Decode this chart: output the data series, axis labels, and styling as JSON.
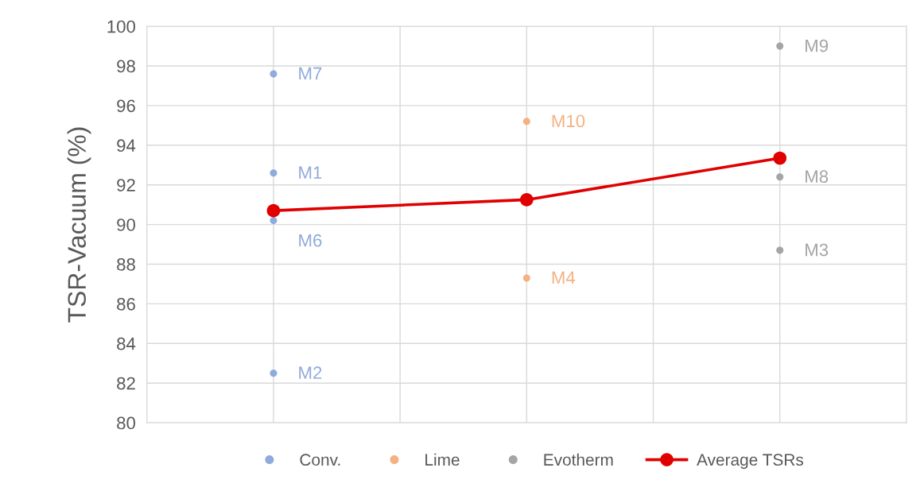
{
  "chart_data": {
    "type": "scatter",
    "ylabel": "TSR-Vacuum (%)",
    "categories": [
      null,
      null,
      null
    ],
    "ylim": [
      80,
      100
    ],
    "yticks": [
      80,
      82,
      84,
      86,
      88,
      90,
      92,
      94,
      96,
      98,
      100
    ],
    "grid": true,
    "legend": "bottom",
    "tick_labels": "y",
    "marker": "circle",
    "line_style": "solid",
    "series": [
      {
        "name": "Conv.",
        "color": "#8faadc",
        "values": [
          97.6,
          null,
          null
        ],
        "value_labels": [
          "M7",
          null,
          null
        ]
      },
      {
        "color": "#8faadc",
        "values": [
          92.6,
          null,
          null
        ],
        "value_labels": [
          "M1",
          null,
          null
        ]
      },
      {
        "color": "#8faadc",
        "values": [
          90.2,
          null,
          null
        ],
        "value_labels": [
          "M6",
          null,
          null
        ]
      },
      {
        "color": "#8faadc",
        "values": [
          82.5,
          null,
          null
        ],
        "value_labels": [
          "M2",
          null,
          null
        ]
      },
      {
        "name": "Lime",
        "color": "#f4b183",
        "values": [
          null,
          95.2,
          null
        ],
        "value_labels": [
          null,
          "M10",
          null
        ]
      },
      {
        "color": "#f4b183",
        "values": [
          null,
          87.3,
          null
        ],
        "value_labels": [
          null,
          "M4",
          null
        ]
      },
      {
        "name": "Evotherm",
        "color": "#a5a5a5",
        "values": [
          null,
          null,
          99.0
        ],
        "value_labels": [
          null,
          null,
          "M9"
        ]
      },
      {
        "color": "#a5a5a5",
        "values": [
          null,
          null,
          92.4
        ],
        "value_labels": [
          null,
          null,
          "M8"
        ]
      },
      {
        "color": "#a5a5a5",
        "values": [
          null,
          null,
          88.7
        ],
        "value_labels": [
          null,
          null,
          "M3"
        ]
      },
      {
        "name": "Average TSRs",
        "type": "line",
        "color": "#e00000",
        "values": [
          90.7,
          91.25,
          93.35
        ]
      }
    ]
  }
}
